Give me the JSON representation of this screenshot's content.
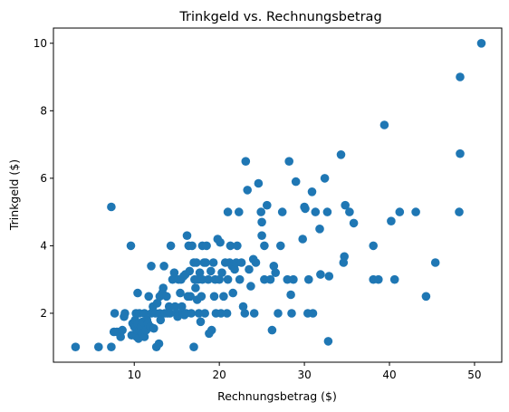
{
  "chart_data": {
    "type": "scatter",
    "title": "Trinkgeld vs. Rechnungsbetrag",
    "xlabel": "Rechnungsbetrag ($)",
    "ylabel": "Trinkgeld ($)",
    "xlim": [
      0.5,
      53.2
    ],
    "ylim": [
      0.55,
      10.45
    ],
    "xticks": [
      10,
      20,
      30,
      40,
      50
    ],
    "yticks": [
      2,
      4,
      6,
      8,
      10
    ],
    "grid": false,
    "marker_color": "#1f77b4",
    "points": [
      [
        3.1,
        1.0
      ],
      [
        5.8,
        1.0
      ],
      [
        7.3,
        1.0
      ],
      [
        7.3,
        5.15
      ],
      [
        7.6,
        1.45
      ],
      [
        7.7,
        2.0
      ],
      [
        8.0,
        1.45
      ],
      [
        8.4,
        1.3
      ],
      [
        8.6,
        1.5
      ],
      [
        8.8,
        1.9
      ],
      [
        8.9,
        2.0
      ],
      [
        9.6,
        4.0
      ],
      [
        9.7,
        1.35
      ],
      [
        9.8,
        1.7
      ],
      [
        10.0,
        1.6
      ],
      [
        10.1,
        1.8
      ],
      [
        10.2,
        2.0
      ],
      [
        10.3,
        1.3
      ],
      [
        10.3,
        1.5
      ],
      [
        10.4,
        1.7
      ],
      [
        10.4,
        2.6
      ],
      [
        10.5,
        1.25
      ],
      [
        10.6,
        1.5
      ],
      [
        10.6,
        2.0
      ],
      [
        10.8,
        1.6
      ],
      [
        10.9,
        1.4
      ],
      [
        11.0,
        1.75
      ],
      [
        11.2,
        1.3
      ],
      [
        11.2,
        2.0
      ],
      [
        11.4,
        1.5
      ],
      [
        11.5,
        1.8
      ],
      [
        11.6,
        1.7
      ],
      [
        11.7,
        2.5
      ],
      [
        11.9,
        1.6
      ],
      [
        12.0,
        3.4
      ],
      [
        12.0,
        2.0
      ],
      [
        12.2,
        2.2
      ],
      [
        12.3,
        1.55
      ],
      [
        12.5,
        2.0
      ],
      [
        12.6,
        1.0
      ],
      [
        12.7,
        2.3
      ],
      [
        12.9,
        1.1
      ],
      [
        13.0,
        2.5
      ],
      [
        13.0,
        2.0
      ],
      [
        13.1,
        1.8
      ],
      [
        13.3,
        2.6
      ],
      [
        13.4,
        2.75
      ],
      [
        13.5,
        3.4
      ],
      [
        13.6,
        2.0
      ],
      [
        13.8,
        2.5
      ],
      [
        13.9,
        2.0
      ],
      [
        14.1,
        2.2
      ],
      [
        14.2,
        2.0
      ],
      [
        14.3,
        4.0
      ],
      [
        14.5,
        3.0
      ],
      [
        14.7,
        3.2
      ],
      [
        14.8,
        2.2
      ],
      [
        15.0,
        2.0
      ],
      [
        15.1,
        1.9
      ],
      [
        15.2,
        3.0
      ],
      [
        15.4,
        2.6
      ],
      [
        15.5,
        3.0
      ],
      [
        15.6,
        2.2
      ],
      [
        15.7,
        2.0
      ],
      [
        15.8,
        3.1
      ],
      [
        15.9,
        1.95
      ],
      [
        16.0,
        3.15
      ],
      [
        16.1,
        2.0
      ],
      [
        16.2,
        4.3
      ],
      [
        16.3,
        2.5
      ],
      [
        16.4,
        4.0
      ],
      [
        16.5,
        3.25
      ],
      [
        16.6,
        2.5
      ],
      [
        16.7,
        2.0
      ],
      [
        16.8,
        4.0
      ],
      [
        17.0,
        1.0
      ],
      [
        17.0,
        3.5
      ],
      [
        17.1,
        3.0
      ],
      [
        17.2,
        2.75
      ],
      [
        17.3,
        3.5
      ],
      [
        17.4,
        2.4
      ],
      [
        17.5,
        3.0
      ],
      [
        17.6,
        2.0
      ],
      [
        17.7,
        3.2
      ],
      [
        17.8,
        1.75
      ],
      [
        17.9,
        2.5
      ],
      [
        18.0,
        4.0
      ],
      [
        18.0,
        3.0
      ],
      [
        18.2,
        3.5
      ],
      [
        18.3,
        2.0
      ],
      [
        18.4,
        3.5
      ],
      [
        18.5,
        4.0
      ],
      [
        18.7,
        3.0
      ],
      [
        18.8,
        1.4
      ],
      [
        19.0,
        3.25
      ],
      [
        19.1,
        1.5
      ],
      [
        19.3,
        3.5
      ],
      [
        19.4,
        2.5
      ],
      [
        19.5,
        3.0
      ],
      [
        19.6,
        2.0
      ],
      [
        19.8,
        4.2
      ],
      [
        20.0,
        3.0
      ],
      [
        20.1,
        4.1
      ],
      [
        20.2,
        2.0
      ],
      [
        20.3,
        3.2
      ],
      [
        20.5,
        2.5
      ],
      [
        20.7,
        3.5
      ],
      [
        20.9,
        2.0
      ],
      [
        21.0,
        3.0
      ],
      [
        21.0,
        5.0
      ],
      [
        21.2,
        3.5
      ],
      [
        21.3,
        4.0
      ],
      [
        21.5,
        3.4
      ],
      [
        21.6,
        2.6
      ],
      [
        21.8,
        3.3
      ],
      [
        22.0,
        3.5
      ],
      [
        22.1,
        4.0
      ],
      [
        22.3,
        5.0
      ],
      [
        22.4,
        3.0
      ],
      [
        22.6,
        3.5
      ],
      [
        22.8,
        2.2
      ],
      [
        23.0,
        2.0
      ],
      [
        23.1,
        6.5
      ],
      [
        23.3,
        5.65
      ],
      [
        23.5,
        3.3
      ],
      [
        23.7,
        2.8
      ],
      [
        24.0,
        3.6
      ],
      [
        24.1,
        2.0
      ],
      [
        24.3,
        3.5
      ],
      [
        24.6,
        5.85
      ],
      [
        24.9,
        5.0
      ],
      [
        25.0,
        4.3
      ],
      [
        25.0,
        4.7
      ],
      [
        25.3,
        3.0
      ],
      [
        25.3,
        4.0
      ],
      [
        25.6,
        5.2
      ],
      [
        26.0,
        3.0
      ],
      [
        26.2,
        1.5
      ],
      [
        26.4,
        3.4
      ],
      [
        26.6,
        3.2
      ],
      [
        26.9,
        2.0
      ],
      [
        27.2,
        4.0
      ],
      [
        27.4,
        5.0
      ],
      [
        28.0,
        3.0
      ],
      [
        28.2,
        6.5
      ],
      [
        28.4,
        2.55
      ],
      [
        28.5,
        2.0
      ],
      [
        28.7,
        3.0
      ],
      [
        29.0,
        5.9
      ],
      [
        29.8,
        4.2
      ],
      [
        30.0,
        5.15
      ],
      [
        30.1,
        5.1
      ],
      [
        30.4,
        2.0
      ],
      [
        30.5,
        3.0
      ],
      [
        30.9,
        5.6
      ],
      [
        31.0,
        2.0
      ],
      [
        31.3,
        5.0
      ],
      [
        31.8,
        4.5
      ],
      [
        31.9,
        3.15
      ],
      [
        32.4,
        6.0
      ],
      [
        32.7,
        5.0
      ],
      [
        32.8,
        1.17
      ],
      [
        32.9,
        3.1
      ],
      [
        34.3,
        6.7
      ],
      [
        34.6,
        3.5
      ],
      [
        34.7,
        3.68
      ],
      [
        34.8,
        5.2
      ],
      [
        35.3,
        5.0
      ],
      [
        35.8,
        4.67
      ],
      [
        38.1,
        3.0
      ],
      [
        38.1,
        4.0
      ],
      [
        38.7,
        3.0
      ],
      [
        39.4,
        7.58
      ],
      [
        40.2,
        4.73
      ],
      [
        40.6,
        3.0
      ],
      [
        41.2,
        5.0
      ],
      [
        43.1,
        5.0
      ],
      [
        44.3,
        2.5
      ],
      [
        45.4,
        3.5
      ],
      [
        48.2,
        5.0
      ],
      [
        48.3,
        6.73
      ],
      [
        48.3,
        9.0
      ],
      [
        50.8,
        10.0
      ]
    ]
  }
}
